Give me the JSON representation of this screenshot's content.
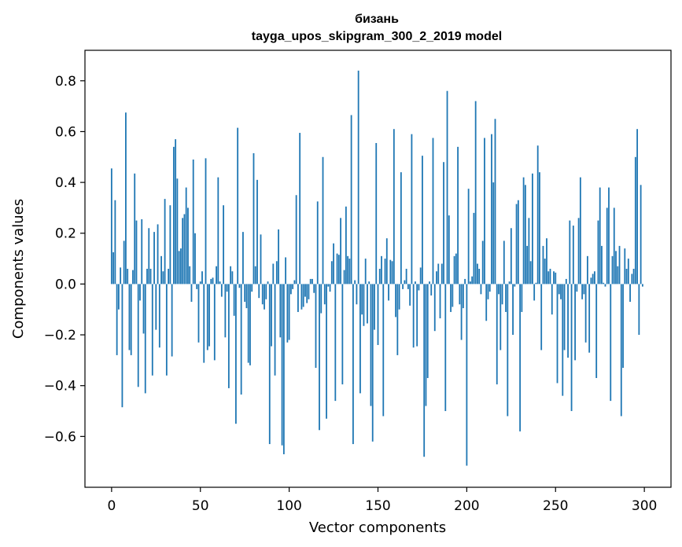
{
  "chart_data": {
    "type": "bar",
    "title": "бизань",
    "subtitle": "tayga_upos_skipgram_300_2_2019 model",
    "xlabel": "Vector components",
    "ylabel": "Components values",
    "xlim": [
      -15,
      315
    ],
    "ylim": [
      -0.8,
      0.92
    ],
    "xticks": [
      0,
      50,
      100,
      150,
      200,
      250,
      300
    ],
    "yticks": [
      -0.6,
      -0.4,
      -0.2,
      0.0,
      0.2,
      0.4,
      0.6,
      0.8
    ],
    "ytick_labels": [
      "−0.6",
      "−0.4",
      "−0.2",
      "0.0",
      "0.2",
      "0.4",
      "0.6",
      "0.8"
    ],
    "bar_color": "#1f77b4",
    "grid": false,
    "values": [
      0.455,
      0.125,
      0.33,
      -0.28,
      -0.1,
      0.065,
      -0.485,
      0.17,
      0.675,
      0.06,
      -0.26,
      -0.28,
      0.055,
      0.435,
      0.25,
      -0.405,
      -0.065,
      0.255,
      -0.195,
      -0.43,
      0.06,
      0.22,
      0.06,
      -0.36,
      0.205,
      -0.18,
      0.235,
      -0.25,
      0.11,
      0.05,
      0.335,
      -0.36,
      0.06,
      0.31,
      -0.285,
      0.54,
      0.57,
      0.415,
      0.13,
      0.14,
      0.26,
      0.275,
      0.38,
      0.3,
      0.07,
      -0.07,
      0.49,
      0.2,
      -0.02,
      -0.23,
      0.01,
      0.05,
      -0.31,
      0.495,
      -0.26,
      -0.245,
      0.02,
      0.025,
      -0.3,
      0.07,
      0.42,
      0.01,
      -0.05,
      0.31,
      -0.21,
      -0.03,
      -0.41,
      0.07,
      0.05,
      -0.125,
      -0.55,
      0.615,
      -0.015,
      -0.435,
      0.205,
      -0.07,
      -0.095,
      -0.31,
      -0.32,
      -0.03,
      0.515,
      0.07,
      0.41,
      -0.055,
      0.195,
      -0.08,
      -0.1,
      -0.06,
      0.01,
      -0.63,
      -0.245,
      0.08,
      -0.36,
      0.09,
      0.215,
      -0.21,
      -0.635,
      -0.67,
      0.105,
      -0.23,
      -0.22,
      -0.04,
      -0.02,
      0.015,
      0.35,
      -0.11,
      0.595,
      -0.1,
      -0.09,
      -0.05,
      -0.075,
      -0.06,
      0.02,
      0.02,
      -0.035,
      -0.33,
      0.325,
      -0.575,
      -0.115,
      0.5,
      -0.08,
      -0.53,
      -0.01,
      -0.03,
      0.09,
      0.16,
      -0.46,
      0.12,
      0.115,
      0.26,
      -0.395,
      0.055,
      0.305,
      0.11,
      0.1,
      0.665,
      -0.63,
      0.015,
      -0.08,
      0.84,
      -0.43,
      -0.12,
      -0.165,
      0.1,
      -0.155,
      0.01,
      -0.48,
      -0.62,
      -0.18,
      0.555,
      -0.24,
      0.06,
      0.11,
      -0.52,
      0.1,
      0.18,
      -0.065,
      0.095,
      0.09,
      0.61,
      -0.13,
      -0.28,
      -0.1,
      0.44,
      -0.02,
      0.015,
      0.06,
      -0.02,
      -0.085,
      0.59,
      -0.25,
      0.01,
      -0.245,
      -0.025,
      0.065,
      0.505,
      -0.68,
      -0.48,
      -0.37,
      0.01,
      -0.045,
      0.575,
      -0.185,
      0.05,
      0.08,
      -0.135,
      0.08,
      0.48,
      -0.5,
      0.76,
      0.27,
      -0.11,
      -0.09,
      0.11,
      0.12,
      0.54,
      -0.08,
      -0.22,
      -0.095,
      0.02,
      -0.715,
      0.375,
      0.01,
      0.03,
      0.28,
      0.72,
      0.08,
      0.06,
      -0.04,
      0.17,
      0.575,
      -0.145,
      -0.06,
      -0.03,
      0.59,
      0.4,
      0.65,
      -0.395,
      -0.04,
      -0.26,
      -0.08,
      0.17,
      -0.11,
      -0.52,
      0.01,
      0.22,
      -0.2,
      -0.01,
      0.315,
      0.33,
      -0.58,
      -0.11,
      0.42,
      0.39,
      0.15,
      0.26,
      0.09,
      0.435,
      -0.065,
      0.005,
      0.545,
      0.44,
      -0.26,
      0.15,
      0.1,
      0.18,
      0.05,
      0.06,
      -0.12,
      0.05,
      0.045,
      -0.39,
      -0.04,
      -0.06,
      -0.44,
      -0.26,
      0.02,
      -0.29,
      0.25,
      -0.5,
      0.23,
      -0.3,
      -0.03,
      0.26,
      0.42,
      -0.06,
      -0.04,
      -0.23,
      0.11,
      -0.27,
      0.025,
      0.04,
      0.05,
      -0.37,
      0.25,
      0.38,
      0.15,
      0.005,
      -0.01,
      0.3,
      0.38,
      -0.46,
      0.11,
      0.3,
      0.13,
      0.07,
      0.15,
      -0.52,
      -0.33,
      0.14,
      0.06,
      0.1,
      -0.07,
      0.04,
      0.06,
      0.5,
      0.61,
      -0.2,
      0.39,
      -0.01
    ]
  }
}
